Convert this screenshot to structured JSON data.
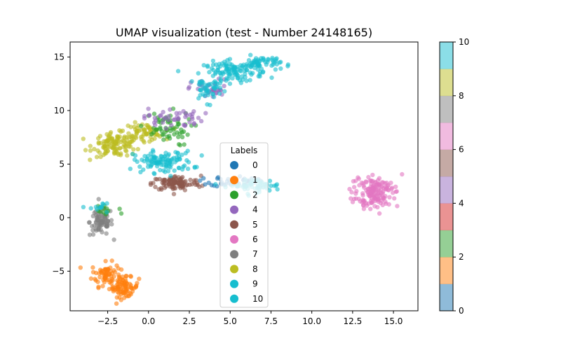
{
  "chart_data": {
    "type": "scatter",
    "title": "UMAP visualization (test - Number 24148165)",
    "xlabel": "",
    "ylabel": "",
    "xlim": [
      -4.8,
      16.5
    ],
    "ylim": [
      -8.7,
      16.4
    ],
    "x_ticks": [
      -2.5,
      0.0,
      2.5,
      5.0,
      7.5,
      10.0,
      12.5,
      15.0
    ],
    "x_tick_labels": [
      "−2.5",
      "0.0",
      "2.5",
      "5.0",
      "7.5",
      "10.0",
      "12.5",
      "15.0"
    ],
    "y_ticks": [
      -5,
      0,
      5,
      10,
      15
    ],
    "y_tick_labels": [
      "−5",
      "0",
      "5",
      "10",
      "15"
    ],
    "grid": false,
    "legend": {
      "title": "Labels",
      "placement": "lower-center",
      "entries": [
        {
          "label": "0",
          "color": "#1f77b4"
        },
        {
          "label": "1",
          "color": "#ff7f0e"
        },
        {
          "label": "2",
          "color": "#2ca02c"
        },
        {
          "label": "4",
          "color": "#9467bd"
        },
        {
          "label": "5",
          "color": "#8c564b"
        },
        {
          "label": "6",
          "color": "#e377c2"
        },
        {
          "label": "7",
          "color": "#7f7f7f"
        },
        {
          "label": "8",
          "color": "#bcbd22"
        },
        {
          "label": "9",
          "color": "#17becf"
        },
        {
          "label": "10",
          "color": "#17becf"
        }
      ]
    },
    "colorbar": {
      "range": [
        0,
        10
      ],
      "ticks": [
        0,
        2,
        4,
        6,
        8,
        10
      ],
      "tick_labels": [
        "0",
        "2",
        "4",
        "6",
        "8",
        "10"
      ],
      "segments": [
        "#1f77b4",
        "#ff7f0e",
        "#2ca02c",
        "#d62728",
        "#9467bd",
        "#8c564b",
        "#e377c2",
        "#7f7f7f",
        "#bcbd22",
        "#17becf"
      ]
    },
    "series": [
      {
        "label": "6",
        "color": "#e377c2",
        "clusters": [
          {
            "cx": 13.8,
            "cy": 2.5,
            "sx": 0.65,
            "sy": 0.85,
            "n": 160
          }
        ]
      },
      {
        "label": "1",
        "color": "#ff7f0e",
        "clusters": [
          {
            "cx": -2.6,
            "cy": -5.3,
            "sx": 0.45,
            "sy": 0.55,
            "n": 70
          },
          {
            "cx": -1.5,
            "cy": -6.5,
            "sx": 0.45,
            "sy": 0.45,
            "n": 80
          }
        ]
      },
      {
        "label": "7",
        "color": "#7f7f7f",
        "clusters": [
          {
            "cx": -2.9,
            "cy": -0.4,
            "sx": 0.35,
            "sy": 0.65,
            "n": 80
          }
        ]
      },
      {
        "label": "8",
        "color": "#bcbd22",
        "clusters": [
          {
            "cx": -2.0,
            "cy": 6.8,
            "sx": 0.7,
            "sy": 0.55,
            "n": 120
          },
          {
            "cx": -0.3,
            "cy": 8.0,
            "sx": 0.6,
            "sy": 0.4,
            "n": 60
          }
        ]
      },
      {
        "label": "5",
        "color": "#8c564b",
        "clusters": [
          {
            "cx": 1.7,
            "cy": 3.2,
            "sx": 0.75,
            "sy": 0.35,
            "n": 110
          }
        ]
      },
      {
        "label": "0",
        "color": "#1f77b4",
        "clusters": [
          {
            "cx": 5.2,
            "cy": 3.4,
            "sx": 0.7,
            "sy": 0.25,
            "n": 50
          }
        ]
      },
      {
        "label": "2",
        "color": "#2ca02c",
        "clusters": [
          {
            "cx": 1.0,
            "cy": 8.3,
            "sx": 0.8,
            "sy": 0.8,
            "n": 60
          }
        ]
      },
      {
        "label": "4",
        "color": "#9467bd",
        "clusters": [
          {
            "cx": 1.5,
            "cy": 9.3,
            "sx": 0.9,
            "sy": 0.45,
            "n": 45
          },
          {
            "cx": 3.8,
            "cy": 12.0,
            "sx": 0.6,
            "sy": 0.45,
            "n": 35
          }
        ]
      },
      {
        "label": "9",
        "color": "#17becf",
        "clusters": [
          {
            "cx": 0.9,
            "cy": 5.2,
            "sx": 0.9,
            "sy": 0.5,
            "n": 110
          },
          {
            "cx": 6.5,
            "cy": 3.0,
            "sx": 0.8,
            "sy": 0.3,
            "n": 60
          }
        ]
      },
      {
        "label": "10",
        "color": "#17becf",
        "clusters": [
          {
            "cx": 5.2,
            "cy": 13.6,
            "sx": 0.9,
            "sy": 0.5,
            "n": 110
          },
          {
            "cx": 6.9,
            "cy": 14.4,
            "sx": 0.6,
            "sy": 0.35,
            "n": 60
          },
          {
            "cx": 3.6,
            "cy": 12.0,
            "sx": 0.45,
            "sy": 0.6,
            "n": 40
          }
        ]
      },
      {
        "label": "2",
        "color": "#2ca02c",
        "clusters": [
          {
            "cx": -2.5,
            "cy": 0.6,
            "sx": 0.5,
            "sy": 0.2,
            "n": 12
          }
        ]
      },
      {
        "label": "9",
        "color": "#17becf",
        "clusters": [
          {
            "cx": -3.0,
            "cy": 1.0,
            "sx": 0.4,
            "sy": 0.2,
            "n": 12
          }
        ]
      }
    ]
  }
}
